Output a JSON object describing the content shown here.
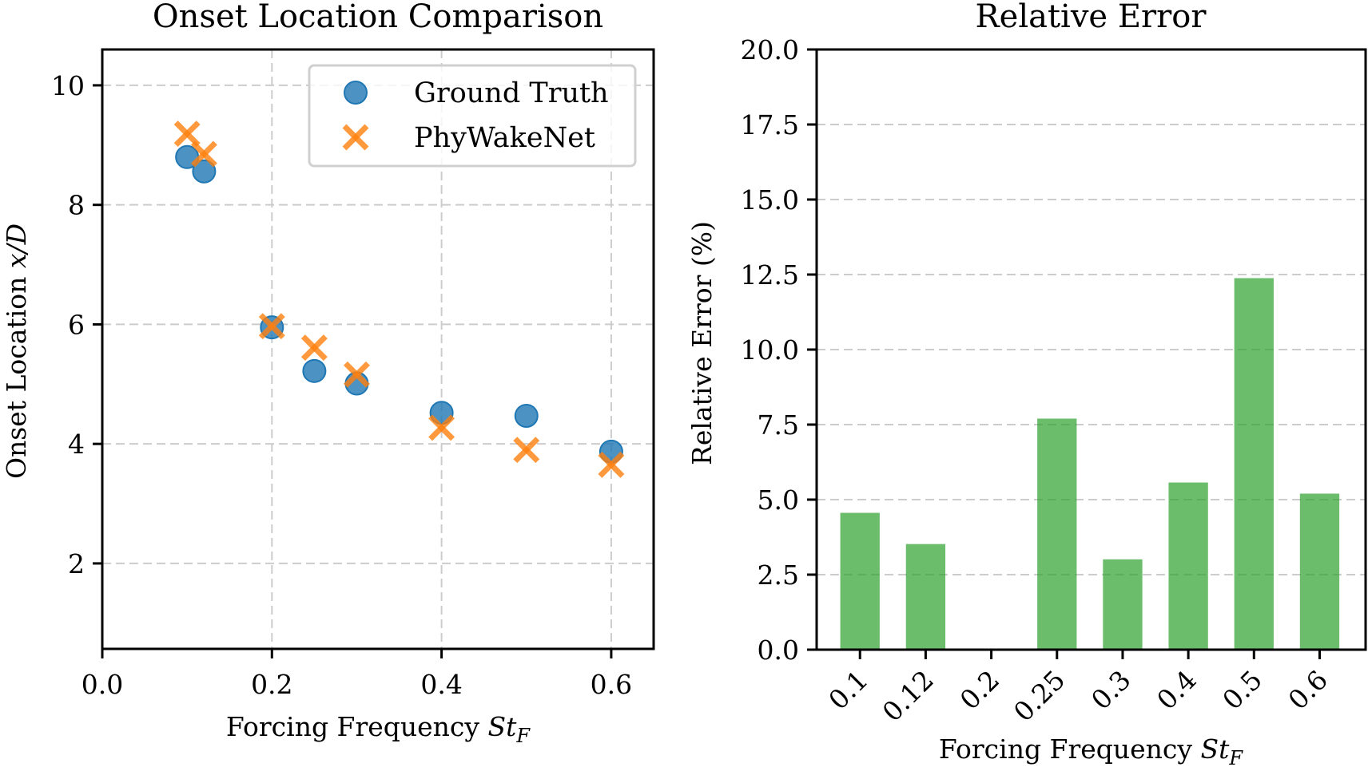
{
  "chart_data": [
    {
      "type": "scatter",
      "title": "Onset Location Comparison",
      "xlabel": "Forcing Frequency St_F",
      "xlabel_main": "Forcing Frequency ",
      "xlabel_math": "St",
      "xlabel_sub": "F",
      "ylabel": "Onset Location x/D",
      "ylabel_main": "Onset Location ",
      "ylabel_math": "x/D",
      "xlim": [
        0.0,
        0.65
      ],
      "ylim": [
        0.57,
        10.6
      ],
      "xticks": [
        0.0,
        0.2,
        0.4,
        0.6
      ],
      "xtick_labels": [
        "0.0",
        "0.2",
        "0.4",
        "0.6"
      ],
      "yticks": [
        2,
        4,
        6,
        8,
        10
      ],
      "ytick_labels": [
        "2",
        "4",
        "6",
        "8",
        "10"
      ],
      "grid": true,
      "legend_position": "top-right",
      "series": [
        {
          "name": "Ground Truth",
          "marker": "circle",
          "color": "#1f77b4",
          "x": [
            0.1,
            0.12,
            0.2,
            0.25,
            0.3,
            0.4,
            0.5,
            0.6
          ],
          "y": [
            8.8,
            8.56,
            5.95,
            5.22,
            5.01,
            4.52,
            4.47,
            3.87
          ]
        },
        {
          "name": "PhyWakeNet",
          "marker": "x",
          "color": "#ff7f0e",
          "x": [
            0.1,
            0.12,
            0.2,
            0.25,
            0.3,
            0.4,
            0.5,
            0.6
          ],
          "y": [
            9.19,
            8.85,
            5.97,
            5.61,
            5.16,
            4.27,
            3.9,
            3.65
          ]
        }
      ]
    },
    {
      "type": "bar",
      "title": "Relative Error",
      "xlabel": "Forcing Frequency St_F",
      "xlabel_main": "Forcing Frequency ",
      "xlabel_math": "St",
      "xlabel_sub": "F",
      "ylabel": "Relative Error (%)",
      "categories": [
        "0.1",
        "0.12",
        "0.2",
        "0.25",
        "0.3",
        "0.4",
        "0.5",
        "0.6"
      ],
      "values": [
        4.56,
        3.52,
        0.0,
        7.7,
        3.01,
        5.57,
        12.38,
        5.2
      ],
      "color": "#2ca02c",
      "ylim": [
        0,
        20
      ],
      "yticks": [
        0,
        2.5,
        5,
        7.5,
        10,
        12.5,
        15,
        17.5,
        20
      ],
      "ytick_labels": [
        "0.0",
        "2.5",
        "5.0",
        "7.5",
        "10.0",
        "12.5",
        "15.0",
        "17.5",
        "20.0"
      ],
      "xtick_rotation_deg": 45,
      "grid": true
    }
  ]
}
